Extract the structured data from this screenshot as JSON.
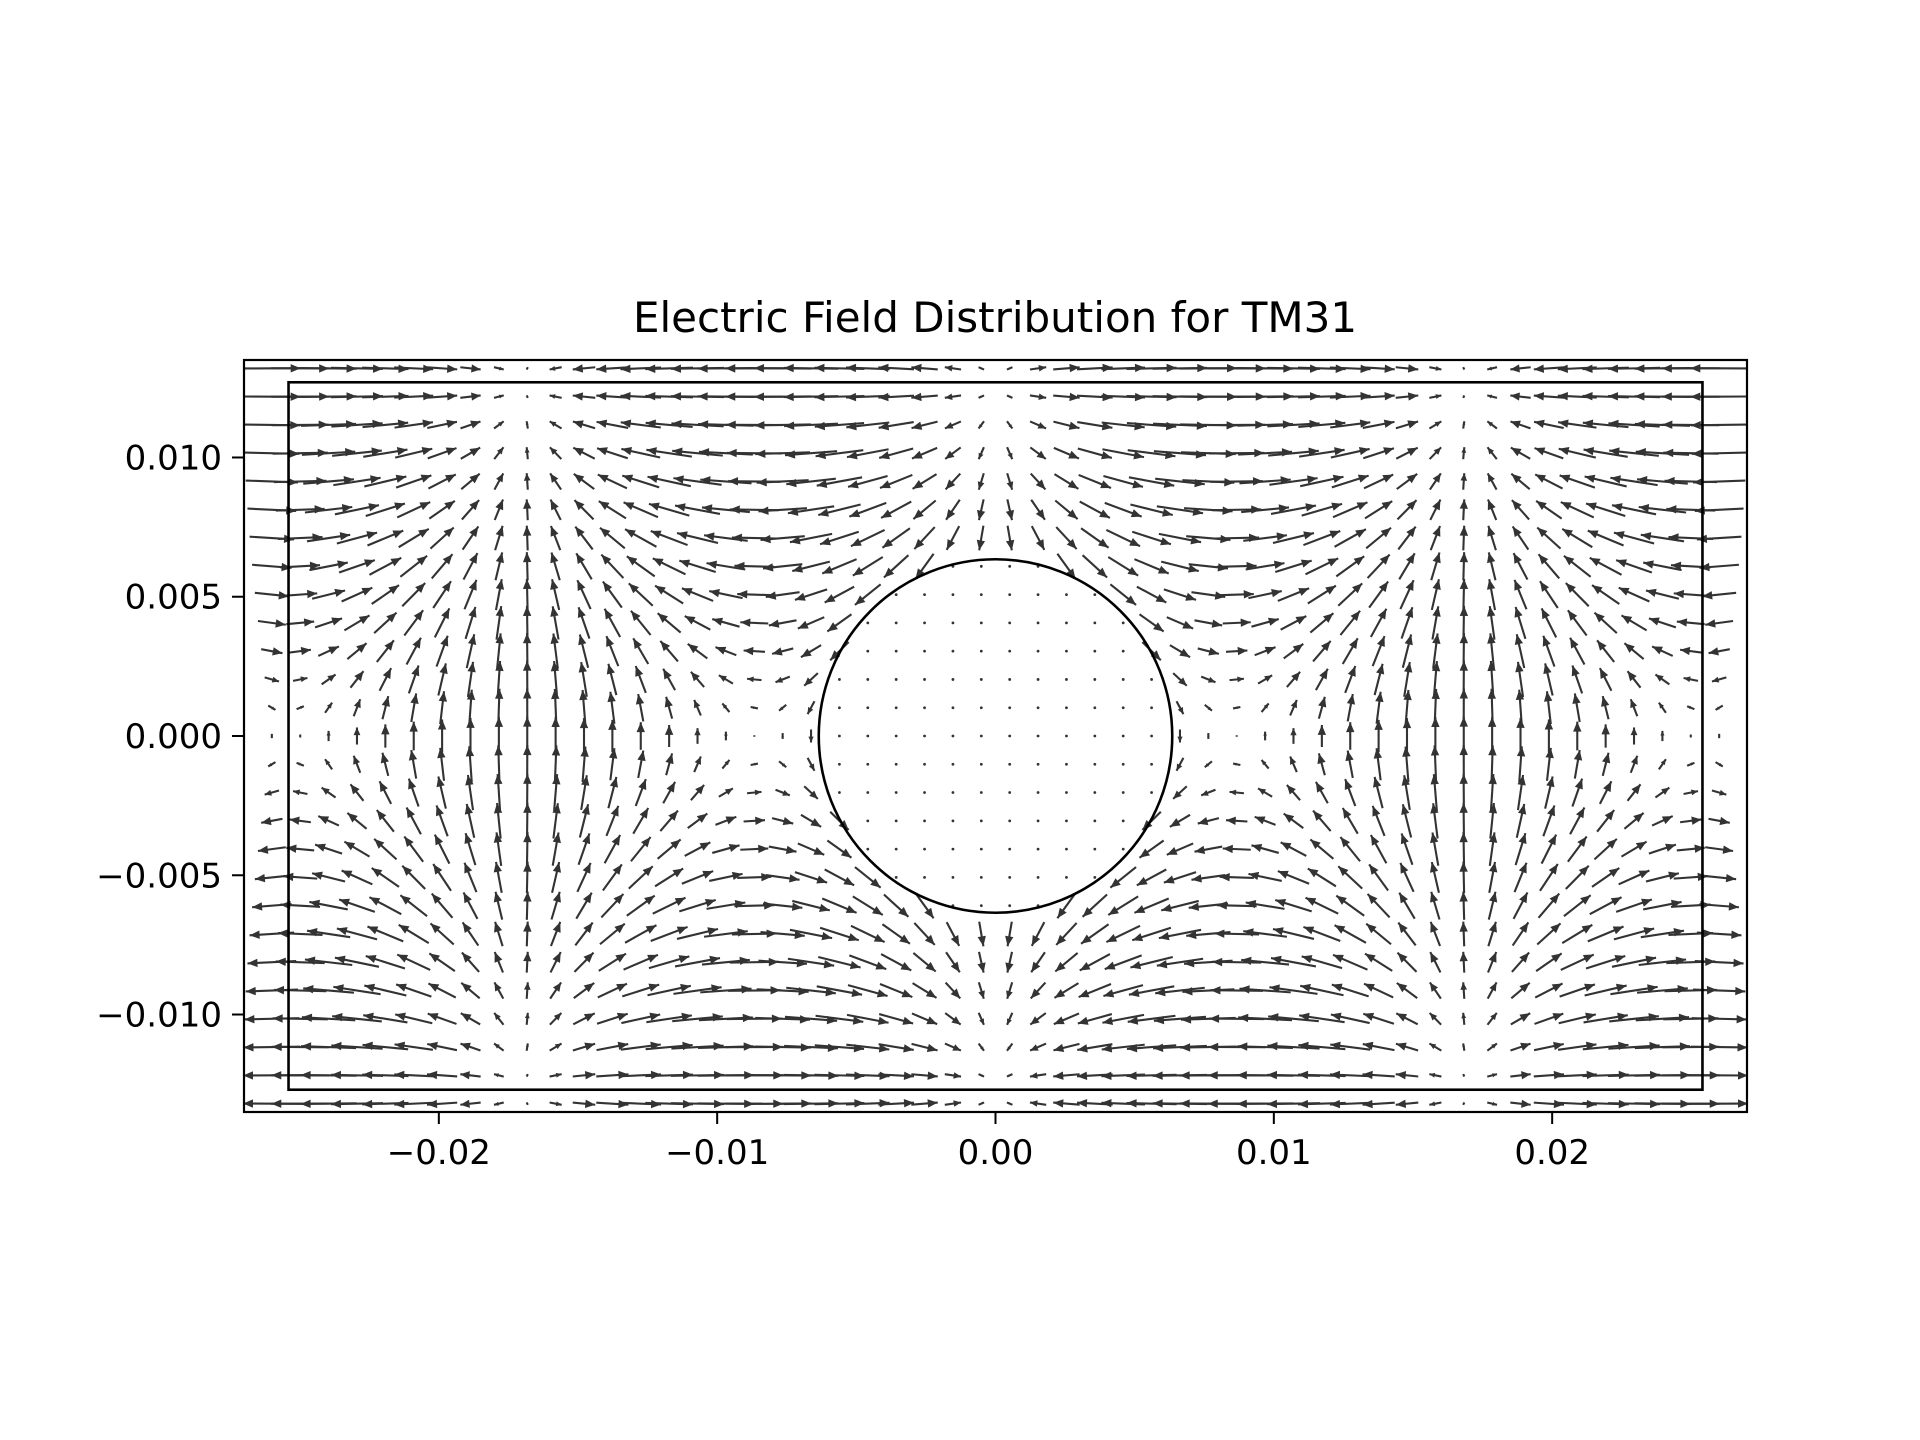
{
  "chart_data": {
    "type": "quiver",
    "title": "Electric Field Distribution for TM31",
    "xlabel": "",
    "ylabel": "",
    "xlim": [
      -0.027,
      0.027
    ],
    "ylim": [
      -0.0135,
      0.0135
    ],
    "x_ticks": [
      -0.02,
      -0.01,
      0.0,
      0.01,
      0.02
    ],
    "x_tick_labels": [
      "−0.02",
      "−0.01",
      "0.00",
      "0.01",
      "0.02"
    ],
    "y_ticks": [
      0.01,
      0.005,
      0.0,
      -0.005,
      -0.01
    ],
    "y_tick_labels": [
      "0.010",
      "0.005",
      "0.000",
      "−0.005",
      "−0.010"
    ],
    "grid": false,
    "field": {
      "mode": "TM31",
      "outer_boundary": {
        "x_range": [
          -0.0254,
          0.0254
        ],
        "y_range": [
          -0.0127,
          0.0127
        ]
      },
      "inner_conductor": {
        "center": [
          0.0,
          0.0
        ],
        "radius": 0.00635
      },
      "samples": {
        "x_range": [
          -0.026,
          0.026
        ],
        "y_range": [
          -0.0132,
          0.0132
        ],
        "nx": 52,
        "ny": 27
      },
      "arrow_color": "#333333"
    },
    "colors": {
      "arrows": "#333333",
      "outlines": "#000000",
      "background": "#ffffff"
    }
  }
}
